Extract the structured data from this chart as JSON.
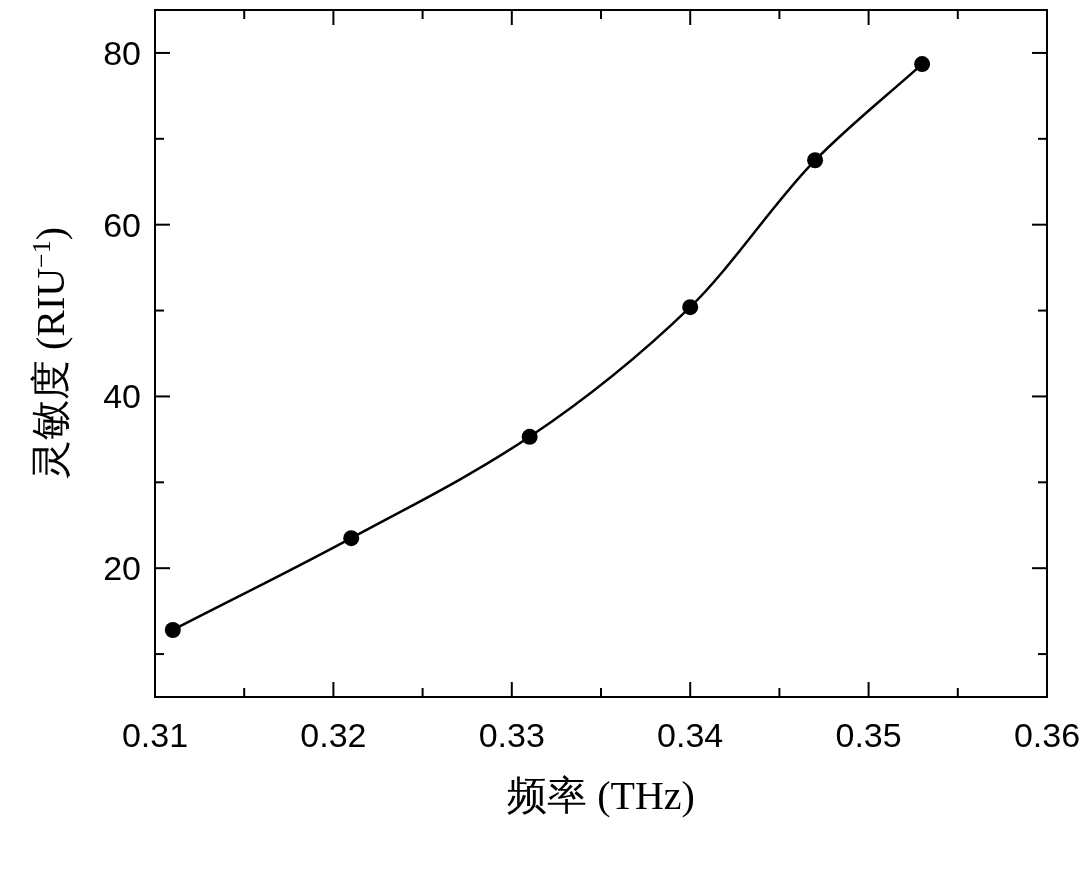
{
  "chart_data": {
    "type": "line",
    "xlabel": "频率 (THz)",
    "ylabel": "灵敏度 (RIU$^{−1}$)",
    "x": [
      0.311,
      0.321,
      0.331,
      0.34,
      0.347,
      0.353
    ],
    "series": [
      {
        "color": "#000000",
        "values": [
          12.8,
          23.5,
          35.3,
          50.4,
          67.5,
          78.7
        ]
      }
    ],
    "marker": "circle",
    "line_style": "solid",
    "grid": false,
    "xlim": [
      0.31,
      0.36
    ],
    "xticks": [
      0.31,
      {
        "value": 0.315,
        "label": null
      },
      0.32,
      {
        "value": 0.325,
        "label": null
      },
      0.33,
      {
        "value": 0.335,
        "label": null
      },
      0.34,
      {
        "value": 0.345,
        "label": null
      },
      0.35,
      {
        "value": 0.355,
        "label": null
      },
      0.36
    ],
    "ylim": [
      5,
      85
    ],
    "yticks": [
      {
        "value": 10,
        "label": null
      },
      20,
      {
        "value": 30,
        "label": null
      },
      40,
      {
        "value": 50,
        "label": null
      },
      60,
      {
        "value": 70,
        "label": null
      },
      80
    ]
  }
}
